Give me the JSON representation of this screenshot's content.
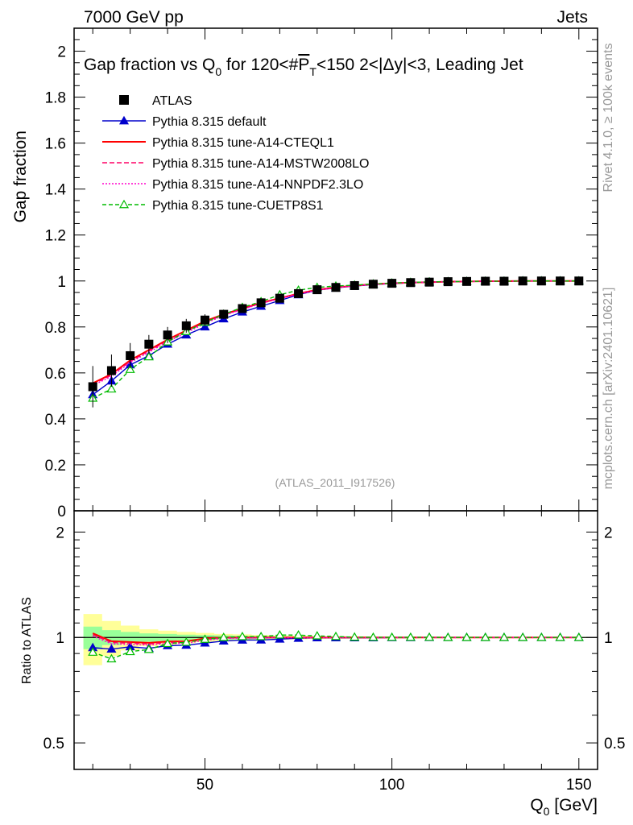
{
  "header": {
    "energy": "7000 GeV pp",
    "category": "Jets",
    "side_rivet": "Rivet 4.1.0, ≥ 100k events",
    "side_mcplots": "mcplots.cern.ch [arXiv:2401.10621]",
    "analysis_id": "(ATLAS_2011_I917526)"
  },
  "colors": {
    "atlas": "#000000",
    "default": "#0000cc",
    "cteql1": "#ff0000",
    "mstw": "#ff0066",
    "nnpdf": "#ff00cc",
    "cuetp8s1": "#00bb00",
    "band_yellow": "#ffff99",
    "band_green": "#99ff99"
  },
  "chart_data": {
    "type": "line",
    "title_parts": [
      "Gap fraction vs Q",
      "0",
      " for 120<#",
      "P",
      "T",
      "<150  2<|Δy|<3, Leading Jet"
    ],
    "ylabel": "Gap fraction",
    "ratio_ylabel": "Ratio to ATLAS",
    "xlabel_parts": [
      "Q",
      "0",
      " [GeV]"
    ],
    "xlim": [
      15,
      155
    ],
    "ylim": [
      0,
      2.1
    ],
    "ratio_ylim": [
      0.42,
      2.3
    ],
    "x_ticks": [
      50,
      100,
      150
    ],
    "y_ticks": [
      0,
      0.2,
      0.4,
      0.6,
      0.8,
      1,
      1.2,
      1.4,
      1.6,
      1.8,
      2
    ],
    "y_tick_labels": [
      "0",
      "0.2",
      "0.4",
      "0.6",
      "0.8",
      "1",
      "1.2",
      "1.4",
      "1.6",
      "1.8",
      "2"
    ],
    "ratio_ticks": [
      0.5,
      1,
      2
    ],
    "ratio_tick_labels": [
      "0.5",
      "1",
      "2"
    ],
    "x": [
      20,
      25,
      30,
      35,
      40,
      45,
      50,
      55,
      60,
      65,
      70,
      75,
      80,
      85,
      90,
      95,
      100,
      105,
      110,
      115,
      120,
      125,
      130,
      135,
      140,
      145,
      150
    ],
    "data": {
      "name": "ATLAS",
      "values": [
        0.54,
        0.61,
        0.675,
        0.725,
        0.765,
        0.805,
        0.83,
        0.855,
        0.88,
        0.905,
        0.925,
        0.945,
        0.962,
        0.972,
        0.98,
        0.986,
        0.99,
        0.993,
        0.995,
        0.997,
        0.998,
        0.999,
        0.999,
        1.0,
        1.0,
        1.0,
        1.0
      ],
      "band_stat": [
        0.04,
        0.03,
        0.025,
        0.02,
        0.018,
        0.015,
        0.013,
        0.012,
        0.01,
        0.009,
        0.008,
        0.007,
        0.006,
        0.005,
        0.004,
        0.004,
        0.003,
        0.003,
        0.002,
        0.002,
        0.002,
        0.002,
        0.002,
        0.002,
        0.002,
        0.002,
        0.002
      ],
      "band_total": [
        0.09,
        0.07,
        0.055,
        0.04,
        0.035,
        0.03,
        0.025,
        0.02,
        0.018,
        0.015,
        0.013,
        0.011,
        0.009,
        0.008,
        0.007,
        0.006,
        0.005,
        0.005,
        0.004,
        0.004,
        0.004,
        0.004,
        0.004,
        0.004,
        0.004,
        0.004,
        0.004
      ]
    },
    "series": [
      {
        "name": "Pythia 8.315 default",
        "key": "default",
        "dash": "",
        "marker": "filled-triangle",
        "values": [
          0.505,
          0.565,
          0.635,
          0.675,
          0.725,
          0.765,
          0.8,
          0.835,
          0.865,
          0.89,
          0.915,
          0.94,
          0.96,
          0.97,
          0.978,
          0.984,
          0.989,
          0.992,
          0.995,
          0.997,
          0.998,
          0.999,
          0.999,
          1.0,
          1.0,
          1.0,
          1.0
        ]
      },
      {
        "name": "Pythia 8.315 tune-A14-CTEQL1",
        "key": "cteql1",
        "dash": "",
        "marker": "",
        "values": [
          0.555,
          0.595,
          0.655,
          0.7,
          0.745,
          0.785,
          0.825,
          0.855,
          0.88,
          0.905,
          0.925,
          0.945,
          0.962,
          0.972,
          0.98,
          0.986,
          0.99,
          0.993,
          0.995,
          0.997,
          0.998,
          0.999,
          0.999,
          1.0,
          1.0,
          1.0,
          1.0
        ]
      },
      {
        "name": "Pythia 8.315 tune-A14-MSTW2008LO",
        "key": "mstw",
        "dash": "6,3",
        "marker": "",
        "values": [
          0.55,
          0.59,
          0.65,
          0.695,
          0.74,
          0.78,
          0.82,
          0.852,
          0.878,
          0.903,
          0.924,
          0.944,
          0.961,
          0.971,
          0.979,
          0.985,
          0.99,
          0.993,
          0.995,
          0.997,
          0.998,
          0.999,
          0.999,
          1.0,
          1.0,
          1.0,
          1.0
        ]
      },
      {
        "name": "Pythia 8.315 tune-A14-NNPDF2.3LO",
        "key": "nnpdf",
        "dash": "2,2",
        "marker": "",
        "values": [
          0.545,
          0.585,
          0.645,
          0.69,
          0.735,
          0.775,
          0.815,
          0.85,
          0.876,
          0.902,
          0.923,
          0.943,
          0.96,
          0.971,
          0.979,
          0.985,
          0.99,
          0.993,
          0.995,
          0.997,
          0.998,
          0.999,
          0.999,
          1.0,
          1.0,
          1.0,
          1.0
        ]
      },
      {
        "name": "Pythia 8.315 tune-CUETP8S1",
        "key": "cuetp8s1",
        "dash": "5,3",
        "marker": "open-triangle",
        "values": [
          0.49,
          0.53,
          0.615,
          0.67,
          0.735,
          0.78,
          0.82,
          0.855,
          0.885,
          0.91,
          0.94,
          0.96,
          0.972,
          0.978,
          0.982,
          0.987,
          0.991,
          0.994,
          0.996,
          0.997,
          0.998,
          0.999,
          0.999,
          1.0,
          1.0,
          1.0,
          1.0
        ]
      }
    ]
  }
}
